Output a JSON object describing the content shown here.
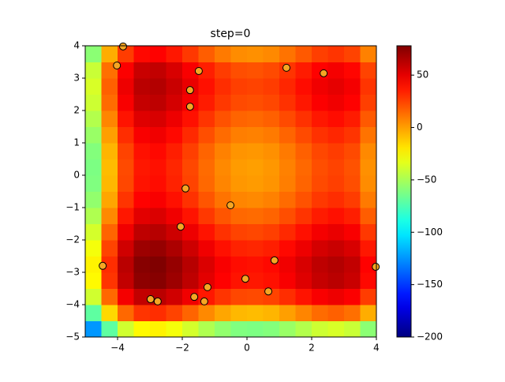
{
  "chart_data": {
    "type": "heatmap",
    "title": "step=0",
    "colormap": "jet",
    "x": [
      -4.75,
      -4.25,
      -3.75,
      -3.25,
      -2.75,
      -2.25,
      -1.75,
      -1.25,
      -0.75,
      -0.25,
      0.25,
      0.75,
      1.25,
      1.75,
      2.25,
      2.75,
      3.25,
      3.75
    ],
    "y": [
      -4.75,
      -4.25,
      -3.75,
      -3.25,
      -2.75,
      -2.25,
      -1.75,
      -1.25,
      -0.75,
      -0.25,
      0.25,
      0.75,
      1.25,
      1.75,
      2.25,
      2.75,
      3.25,
      3.75
    ],
    "z": [
      [
        -124,
        -70,
        -39,
        -25,
        -23,
        -29,
        -38,
        -48,
        -56,
        -61,
        -62,
        -60,
        -54,
        -47,
        -40,
        -37,
        -41,
        -58
      ],
      [
        -70,
        -16,
        15,
        29,
        31,
        25,
        16,
        6,
        -2,
        -7,
        -8,
        -6,
        0,
        7,
        14,
        17,
        13,
        -4
      ],
      [
        -39,
        15,
        46,
        60,
        62,
        56,
        47,
        37,
        29,
        24,
        23,
        25,
        31,
        38,
        45,
        48,
        44,
        27
      ],
      [
        -25,
        29,
        60,
        74,
        76,
        70,
        61,
        51,
        43,
        38,
        37,
        39,
        45,
        52,
        59,
        62,
        58,
        41
      ],
      [
        -23,
        31,
        62,
        76,
        78,
        72,
        63,
        53,
        45,
        40,
        39,
        41,
        47,
        54,
        61,
        64,
        60,
        43
      ],
      [
        -29,
        25,
        56,
        70,
        72,
        66,
        57,
        47,
        39,
        34,
        33,
        35,
        41,
        48,
        55,
        58,
        54,
        37
      ],
      [
        -38,
        16,
        47,
        61,
        63,
        57,
        48,
        38,
        30,
        25,
        24,
        26,
        32,
        39,
        46,
        49,
        45,
        28
      ],
      [
        -48,
        6,
        37,
        51,
        53,
        47,
        38,
        28,
        20,
        15,
        14,
        16,
        22,
        29,
        36,
        39,
        35,
        18
      ],
      [
        -56,
        -2,
        29,
        43,
        45,
        39,
        30,
        20,
        12,
        7,
        6,
        8,
        14,
        21,
        28,
        31,
        27,
        10
      ],
      [
        -61,
        -7,
        24,
        38,
        40,
        34,
        25,
        15,
        7,
        2,
        1,
        3,
        9,
        16,
        23,
        26,
        22,
        5
      ],
      [
        -62,
        -8,
        23,
        37,
        39,
        33,
        24,
        14,
        6,
        1,
        0,
        2,
        8,
        15,
        22,
        25,
        21,
        4
      ],
      [
        -60,
        -6,
        25,
        39,
        41,
        35,
        26,
        16,
        8,
        3,
        2,
        4,
        10,
        17,
        24,
        27,
        23,
        6
      ],
      [
        -54,
        0,
        31,
        45,
        47,
        41,
        32,
        22,
        14,
        9,
        8,
        10,
        16,
        23,
        30,
        33,
        29,
        12
      ],
      [
        -47,
        7,
        38,
        52,
        54,
        48,
        39,
        29,
        21,
        16,
        15,
        17,
        23,
        30,
        37,
        40,
        36,
        19
      ],
      [
        -40,
        14,
        45,
        59,
        61,
        55,
        46,
        36,
        28,
        23,
        22,
        24,
        30,
        37,
        44,
        47,
        43,
        26
      ],
      [
        -37,
        17,
        48,
        62,
        64,
        58,
        49,
        39,
        31,
        26,
        25,
        27,
        33,
        40,
        47,
        50,
        46,
        29
      ],
      [
        -41,
        13,
        44,
        58,
        60,
        54,
        45,
        35,
        27,
        22,
        21,
        23,
        29,
        36,
        43,
        46,
        42,
        25
      ],
      [
        -58,
        -4,
        27,
        41,
        43,
        37,
        28,
        18,
        10,
        5,
        4,
        6,
        12,
        19,
        26,
        29,
        25,
        8
      ]
    ],
    "clim": [
      -200,
      78
    ],
    "xlim": [
      -5,
      4
    ],
    "ylim": [
      -5,
      4
    ],
    "xticks": [
      {
        "value": -4,
        "label": "−4"
      },
      {
        "value": -2,
        "label": "−2"
      },
      0,
      2,
      4
    ],
    "yticks": [
      {
        "value": -5,
        "label": "−5"
      },
      {
        "value": -4,
        "label": "−4"
      },
      {
        "value": -3,
        "label": "−3"
      },
      {
        "value": -2,
        "label": "−2"
      },
      {
        "value": -1,
        "label": "−1"
      },
      0,
      1,
      2,
      3,
      4
    ],
    "colorbar_ticks": [
      {
        "value": -200,
        "label": "−200"
      },
      {
        "value": -150,
        "label": "−150"
      },
      {
        "value": -100,
        "label": "−100"
      },
      {
        "value": -50,
        "label": "−50"
      },
      0,
      50
    ],
    "points": {
      "color": "#f5a623",
      "x": [
        -3.83,
        -4.02,
        -1.49,
        -1.76,
        -1.76,
        1.22,
        2.37,
        -1.9,
        -0.51,
        -2.05,
        -4.46,
        0.85,
        -0.05,
        -1.22,
        3.98,
        0.66,
        -2.98,
        -2.76,
        -1.63,
        -1.32
      ],
      "y": [
        3.98,
        3.39,
        3.22,
        2.63,
        2.12,
        3.32,
        3.15,
        -0.41,
        -0.93,
        -1.59,
        -2.8,
        -2.63,
        -3.2,
        -3.46,
        -2.83,
        -3.59,
        -3.83,
        -3.9,
        -3.76,
        -3.9
      ]
    }
  }
}
